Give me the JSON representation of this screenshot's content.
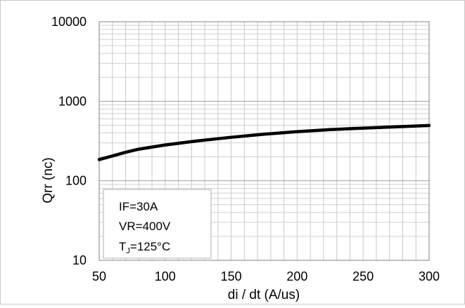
{
  "chart_data": {
    "type": "line",
    "xlabel": "di / dt (A/us)",
    "ylabel": "Qrr  (nc)",
    "xlim": [
      50,
      300
    ],
    "ylim": [
      10,
      10000
    ],
    "yscale": "log",
    "grid": true,
    "x_ticks": [
      "50",
      "100",
      "150",
      "200",
      "250",
      "300"
    ],
    "y_ticks": [
      "10",
      "100",
      "1000",
      "10000"
    ],
    "series": [
      {
        "color": "#000000",
        "x": [
          50,
          60,
          70,
          80,
          100,
          125,
          150,
          175,
          200,
          225,
          250,
          275,
          300
        ],
        "y": [
          185,
          205,
          228,
          250,
          282,
          318,
          352,
          385,
          415,
          440,
          460,
          478,
          495
        ]
      }
    ],
    "annotation": {
      "line1": "IF=30A",
      "line2": "VR=400V",
      "line3_main": "T",
      "line3_sub": "J",
      "line3_rest": "=125°C"
    }
  }
}
